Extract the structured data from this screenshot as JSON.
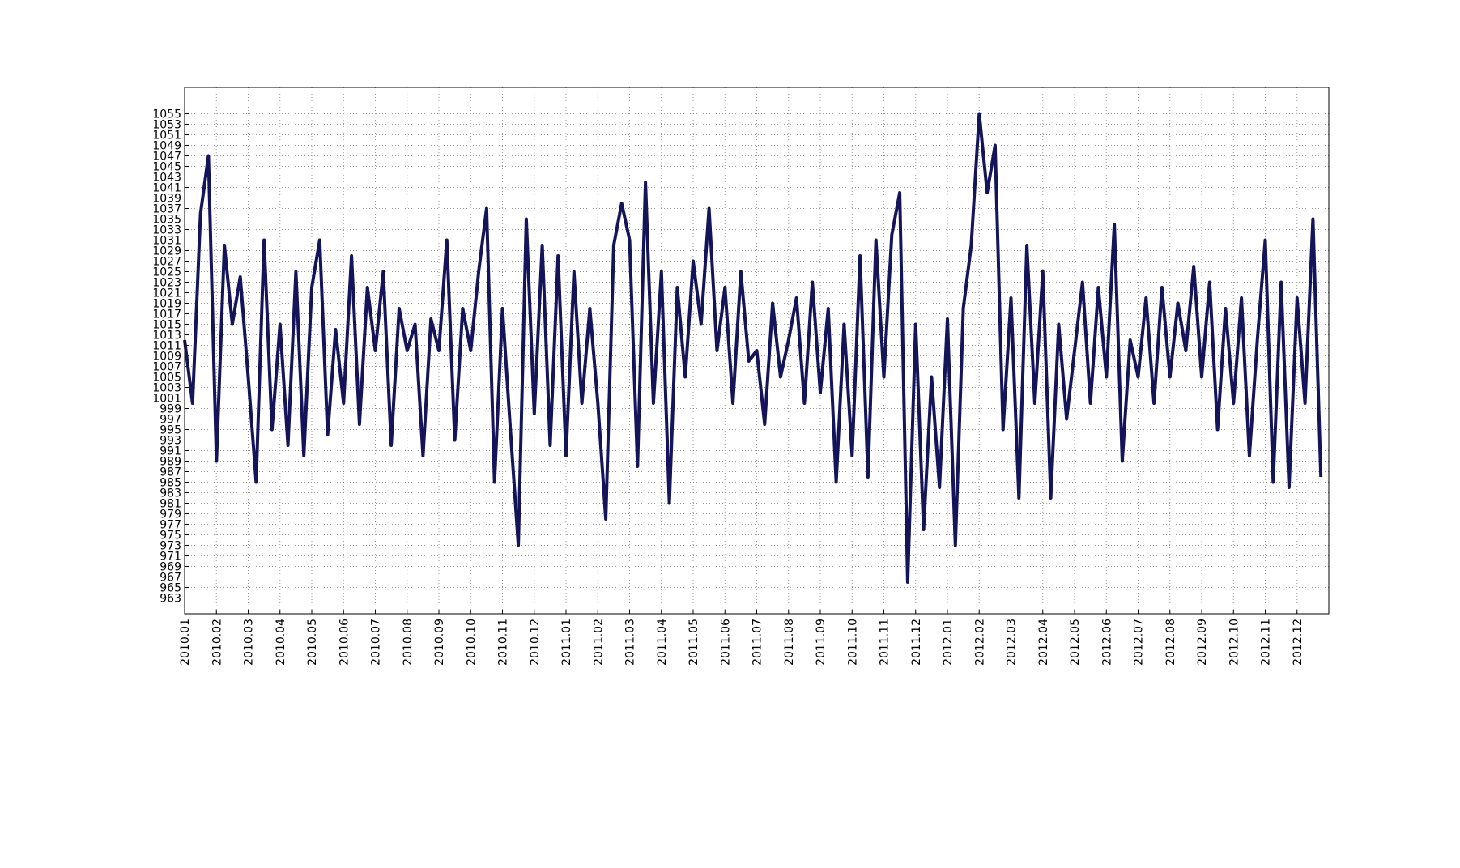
{
  "chart_data": {
    "type": "line",
    "color": "#14145a",
    "grid": true,
    "x": [
      0,
      0.25,
      0.5,
      0.75,
      1,
      1.25,
      1.5,
      1.75,
      2,
      2.25,
      2.5,
      2.75,
      3,
      3.25,
      3.5,
      3.75,
      4,
      4.25,
      4.5,
      4.75,
      5,
      5.25,
      5.5,
      5.75,
      6,
      6.25,
      6.5,
      6.75,
      7,
      7.25,
      7.5,
      7.75,
      8,
      8.25,
      8.5,
      8.75,
      9,
      9.25,
      9.5,
      9.75,
      10,
      10.25,
      10.5,
      10.75,
      11,
      11.25,
      11.5,
      11.75,
      12,
      12.25,
      12.5,
      12.75,
      13,
      13.25,
      13.5,
      13.75,
      14,
      14.25,
      14.5,
      14.75,
      15,
      15.25,
      15.5,
      15.75,
      16,
      16.25,
      16.5,
      16.75,
      17,
      17.25,
      17.5,
      17.75,
      18,
      18.25,
      18.5,
      18.75,
      19,
      19.25,
      19.5,
      19.75,
      20,
      20.25,
      20.5,
      20.75,
      21,
      21.25,
      21.5,
      21.75,
      22,
      22.25,
      22.5,
      22.75,
      23,
      23.25,
      23.5,
      23.75,
      24,
      24.25,
      24.5,
      24.75,
      25,
      25.25,
      25.5,
      25.75,
      26,
      26.25,
      26.5,
      26.75,
      27,
      27.25,
      27.5,
      27.75,
      28,
      28.25,
      28.5,
      28.75,
      29,
      29.25,
      29.5,
      29.75,
      30,
      30.25,
      30.5,
      30.75,
      31,
      31.25,
      31.5,
      31.75,
      32,
      32.25,
      32.5,
      32.75,
      33,
      33.25,
      33.5,
      33.75,
      34,
      34.25,
      34.5,
      34.75,
      35,
      35.25,
      35.5,
      35.75
    ],
    "values": [
      1012,
      1000,
      1036,
      1047,
      989,
      1030,
      1015,
      1024,
      1005,
      985,
      1031,
      995,
      1015,
      992,
      1025,
      990,
      1022,
      1031,
      994,
      1014,
      1000,
      1028,
      996,
      1022,
      1010,
      1025,
      992,
      1018,
      1010,
      1015,
      990,
      1016,
      1010,
      1031,
      993,
      1018,
      1010,
      1025,
      1037,
      985,
      1018,
      995,
      973,
      1035,
      998,
      1030,
      992,
      1028,
      990,
      1025,
      1000,
      1018,
      1000,
      978,
      1030,
      1038,
      1031,
      988,
      1042,
      1000,
      1025,
      981,
      1022,
      1005,
      1027,
      1015,
      1037,
      1010,
      1022,
      1000,
      1025,
      1008,
      1010,
      996,
      1019,
      1005,
      1012,
      1020,
      1000,
      1023,
      1002,
      1018,
      985,
      1015,
      990,
      1028,
      986,
      1031,
      1005,
      1032,
      1040,
      966,
      1015,
      976,
      1005,
      984,
      1016,
      973,
      1018,
      1030,
      1055,
      1040,
      1049,
      995,
      1020,
      982,
      1030,
      1000,
      1025,
      982,
      1015,
      997,
      1010,
      1023,
      1000,
      1022,
      1005,
      1034,
      989,
      1012,
      1005,
      1020,
      1000,
      1022,
      1005,
      1019,
      1010,
      1026,
      1005,
      1023,
      995,
      1018,
      1000,
      1020,
      990,
      1012,
      1031,
      985,
      1023,
      984,
      1020,
      1000,
      1035,
      986
    ],
    "xlim": [
      0,
      36
    ],
    "xticks": [
      {
        "value": 0,
        "label": "2010.01"
      },
      {
        "value": 1,
        "label": "2010.02"
      },
      {
        "value": 2,
        "label": "2010.03"
      },
      {
        "value": 3,
        "label": "2010.04"
      },
      {
        "value": 4,
        "label": "2010.05"
      },
      {
        "value": 5,
        "label": "2010.06"
      },
      {
        "value": 6,
        "label": "2010.07"
      },
      {
        "value": 7,
        "label": "2010.08"
      },
      {
        "value": 8,
        "label": "2010.09"
      },
      {
        "value": 9,
        "label": "2010.10"
      },
      {
        "value": 10,
        "label": "2010.11"
      },
      {
        "value": 11,
        "label": "2010.12"
      },
      {
        "value": 12,
        "label": "2011.01"
      },
      {
        "value": 13,
        "label": "2011.02"
      },
      {
        "value": 14,
        "label": "2011.03"
      },
      {
        "value": 15,
        "label": "2011.04"
      },
      {
        "value": 16,
        "label": "2011.05"
      },
      {
        "value": 17,
        "label": "2011.06"
      },
      {
        "value": 18,
        "label": "2011.07"
      },
      {
        "value": 19,
        "label": "2011.08"
      },
      {
        "value": 20,
        "label": "2011.09"
      },
      {
        "value": 21,
        "label": "2011.10"
      },
      {
        "value": 22,
        "label": "2011.11"
      },
      {
        "value": 23,
        "label": "2011.12"
      },
      {
        "value": 24,
        "label": "2012.01"
      },
      {
        "value": 25,
        "label": "2012.02"
      },
      {
        "value": 26,
        "label": "2012.03"
      },
      {
        "value": 27,
        "label": "2012.04"
      },
      {
        "value": 28,
        "label": "2012.05"
      },
      {
        "value": 29,
        "label": "2012.06"
      },
      {
        "value": 30,
        "label": "2012.07"
      },
      {
        "value": 31,
        "label": "2012.08"
      },
      {
        "value": 32,
        "label": "2012.09"
      },
      {
        "value": 33,
        "label": "2012.10"
      },
      {
        "value": 34,
        "label": "2012.11"
      },
      {
        "value": 35,
        "label": "2012.12"
      }
    ],
    "ylim": [
      960,
      1060
    ],
    "yticks": [
      963,
      965,
      967,
      969,
      971,
      973,
      975,
      977,
      979,
      981,
      983,
      985,
      987,
      989,
      991,
      993,
      995,
      997,
      999,
      1001,
      1003,
      1005,
      1007,
      1009,
      1011,
      1013,
      1015,
      1017,
      1019,
      1021,
      1023,
      1025,
      1027,
      1029,
      1031,
      1033,
      1035,
      1037,
      1039,
      1041,
      1043,
      1045,
      1047,
      1049,
      1051,
      1053,
      1055
    ]
  }
}
